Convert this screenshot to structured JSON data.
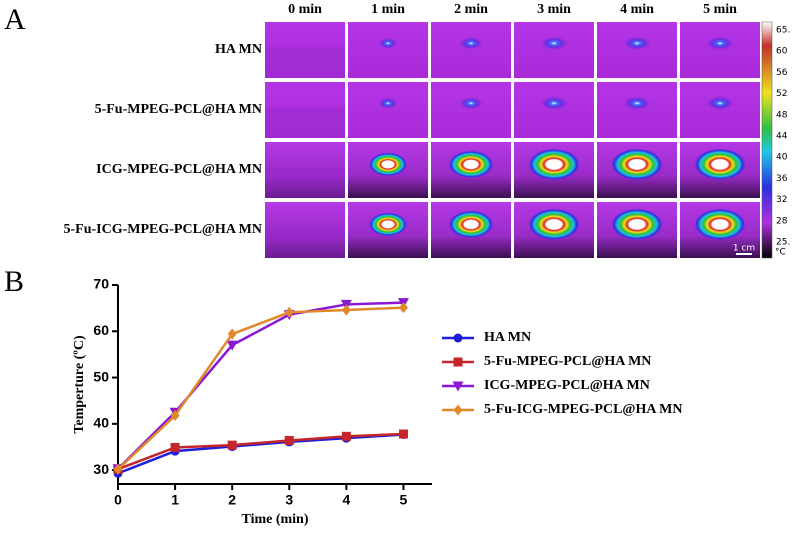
{
  "panel_a": {
    "label": "A",
    "columns": [
      "0 min",
      "1 min",
      "2 min",
      "3 min",
      "4 min",
      "5 min"
    ],
    "rows": [
      "HA MN",
      "5-Fu-MPEG-PCL@HA MN",
      "ICG-MPEG-PCL@HA MN",
      "5-Fu-ICG-MPEG-PCL@HA MN"
    ],
    "colorbar": {
      "labels": [
        "65.",
        "60",
        "56",
        "52",
        "48",
        "44",
        "40",
        "36",
        "32",
        "28",
        "25."
      ],
      "unit": "°C"
    },
    "scale_bar": "1 cm"
  },
  "panel_b": {
    "label": "B"
  },
  "chart_data": {
    "type": "line",
    "x_label": "Time (min)",
    "y_label": "Temperture (ºC)",
    "x": [
      0,
      1,
      2,
      3,
      4,
      5
    ],
    "xlim": [
      0,
      5.5
    ],
    "xticks": [
      0,
      1,
      2,
      3,
      4,
      5
    ],
    "ylim": [
      27,
      70
    ],
    "yticks": [
      30,
      40,
      50,
      60,
      70
    ],
    "series": [
      {
        "name": "HA MN",
        "color": "#1f1fd8",
        "marker": "circle",
        "values": [
          29.3,
          34.1,
          35.1,
          36.1,
          36.9,
          37.7
        ]
      },
      {
        "name": "5-Fu-MPEG-PCL@HA MN",
        "color": "#c4262c",
        "marker": "square",
        "values": [
          30.2,
          34.9,
          35.4,
          36.4,
          37.3,
          37.8
        ]
      },
      {
        "name": "ICG-MPEG-PCL@HA MN",
        "color": "#8b17d6",
        "marker": "triangle-down",
        "values": [
          30.3,
          42.5,
          57.0,
          63.6,
          65.8,
          66.2
        ]
      },
      {
        "name": "5-Fu-ICG-MPEG-PCL@HA MN",
        "color": "#e0882a",
        "marker": "diamond",
        "values": [
          30.2,
          41.8,
          59.4,
          64.1,
          64.6,
          65.1
        ]
      }
    ]
  }
}
